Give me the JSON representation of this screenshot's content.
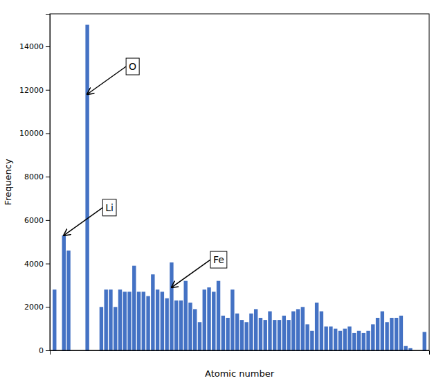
{
  "chart_data": {
    "type": "bar",
    "xlabel": "Atomic number",
    "ylabel": "Frequency",
    "color": "#4472C4",
    "x": [
      1,
      2,
      3,
      4,
      5,
      6,
      7,
      8,
      9,
      10,
      11,
      12,
      13,
      14,
      15,
      16,
      17,
      18,
      19,
      20,
      21,
      22,
      23,
      24,
      25,
      26,
      27,
      28,
      29,
      30,
      31,
      32,
      33,
      34,
      35,
      36,
      37,
      38,
      39,
      40,
      41,
      42,
      43,
      44,
      45,
      46,
      47,
      48,
      49,
      50,
      51,
      52,
      53,
      54,
      55,
      56,
      57,
      58,
      59,
      60,
      61,
      62,
      63,
      64,
      65,
      66,
      67,
      68,
      69,
      70,
      71,
      72,
      73,
      74,
      75,
      76,
      77,
      78,
      79,
      80
    ],
    "values": [
      2800,
      0,
      5300,
      4600,
      0,
      0,
      0,
      15000,
      0,
      0,
      2000,
      2800,
      2800,
      2000,
      2800,
      2700,
      2700,
      3900,
      2700,
      2700,
      2500,
      3500,
      2800,
      2700,
      2400,
      4050,
      2300,
      2300,
      3200,
      2200,
      1900,
      1300,
      2800,
      2900,
      2700,
      3200,
      1600,
      1500,
      2800,
      1700,
      1400,
      1300,
      1700,
      1900,
      1500,
      1400,
      1800,
      1400,
      1400,
      1600,
      1400,
      1800,
      1900,
      2000,
      1200,
      900,
      2200,
      1800,
      1100,
      1100,
      1000,
      900,
      1000,
      1100,
      800,
      900,
      800,
      900,
      1200,
      1500,
      1800,
      1300,
      1500,
      1500,
      1600,
      200,
      100,
      0,
      0,
      850
    ],
    "xlim": [
      0,
      81
    ],
    "xticks": [],
    "ylim": [
      0,
      15500
    ],
    "yticks": [
      0,
      2000,
      4000,
      6000,
      8000,
      10000,
      12000,
      14000
    ],
    "tick_labels": "y",
    "grid": false,
    "annotations": [
      {
        "text": "O",
        "x": 8,
        "y": 11800
      },
      {
        "text": "Li",
        "x": 3,
        "y": 5300
      },
      {
        "text": "Fe",
        "x": 26,
        "y": 2900
      }
    ]
  }
}
